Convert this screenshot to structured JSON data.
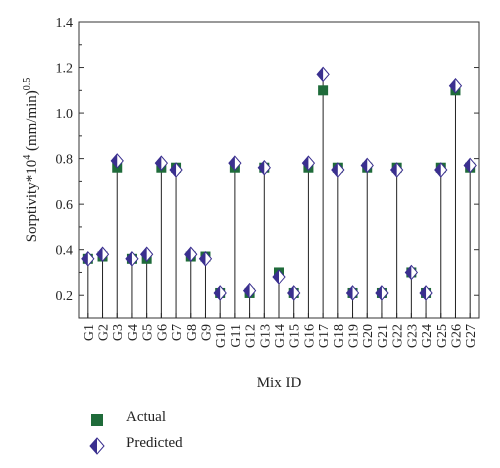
{
  "chart_data": {
    "type": "scatter",
    "xlabel": "Mix ID",
    "ylabel_main": "Sorptivity*10",
    "ylabel_exp": "4",
    "ylabel_unit": " (mm/min)",
    "ylabel_unit_exp": "0.5",
    "ylim": [
      0.1,
      1.4
    ],
    "yticks": [
      0.2,
      0.4,
      0.6,
      0.8,
      1.0,
      1.2,
      1.4
    ],
    "ytick_labels": [
      "0.2",
      "0.4",
      "0.6",
      "0.8",
      "1.0",
      "1.2",
      "1.4"
    ],
    "grid": false,
    "legend_position": "bottom-left",
    "categories": [
      "G1",
      "G2",
      "G3",
      "G4",
      "G5",
      "G6",
      "G7",
      "G8",
      "G9",
      "G10",
      "G11",
      "G12",
      "G13",
      "G14",
      "G15",
      "G16",
      "G17",
      "G18",
      "G19",
      "G20",
      "G21",
      "G22",
      "G23",
      "G24",
      "G25",
      "G26",
      "G27"
    ],
    "series": [
      {
        "name": "Actual",
        "marker": "square",
        "color": "#1f6b3a",
        "values": [
          0.36,
          0.37,
          0.76,
          0.36,
          0.36,
          0.76,
          0.76,
          0.37,
          0.37,
          0.21,
          0.76,
          0.21,
          0.76,
          0.3,
          0.21,
          0.76,
          1.1,
          0.76,
          0.21,
          0.76,
          0.21,
          0.76,
          0.3,
          0.21,
          0.76,
          1.1,
          0.76
        ]
      },
      {
        "name": "Predicted",
        "marker": "diamond",
        "color_left": "#3a2f8f",
        "color_right": "#ffffff",
        "values": [
          0.36,
          0.38,
          0.79,
          0.36,
          0.38,
          0.78,
          0.75,
          0.38,
          0.36,
          0.21,
          0.78,
          0.22,
          0.76,
          0.28,
          0.21,
          0.78,
          1.17,
          0.75,
          0.21,
          0.77,
          0.21,
          0.75,
          0.3,
          0.21,
          0.75,
          1.12,
          0.77
        ]
      }
    ]
  }
}
